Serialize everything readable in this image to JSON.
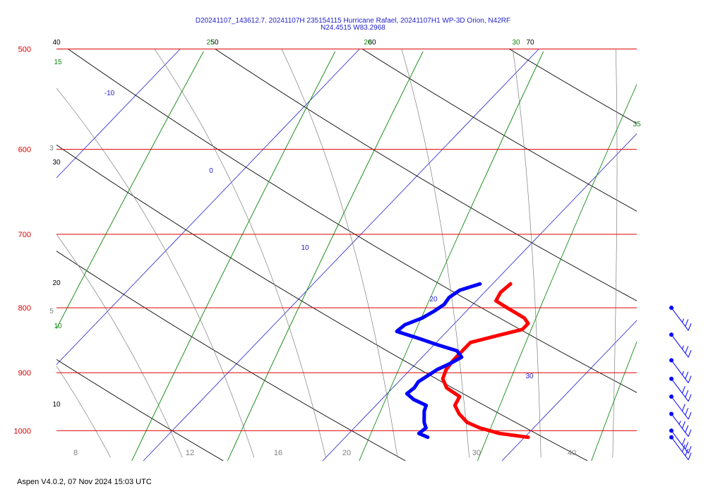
{
  "header": {
    "title_line1": "D20241107_143612.7. 20241107H 235154115 Hurricane Rafael, 20241107H1 WP-3D Orion, N42RF",
    "title_line2": "N24.4515 W83.2968"
  },
  "footer": {
    "text": "Aspen V4.0.2, 07 Nov 2024  15:03 UTC"
  },
  "colors": {
    "isobar": "#dd0000",
    "isotherm": "#2222cc",
    "dry_adiabat": "#000000",
    "moist_adiabat": "#7f7f7f",
    "mixing_ratio": "#118811",
    "temperature": "#ff0000",
    "dewpoint": "#0000ff"
  },
  "chart_data": {
    "type": "line",
    "diagram": "skew-T log-P",
    "pressure_levels": [
      {
        "p": 500,
        "label": "500"
      },
      {
        "p": 600,
        "label": "600"
      },
      {
        "p": 700,
        "label": "700"
      },
      {
        "p": 800,
        "label": "800"
      },
      {
        "p": 900,
        "label": "900"
      },
      {
        "p": 1000,
        "label": "1000"
      }
    ],
    "bottom_temperature_ticks": [
      "8",
      "12",
      "16",
      "20",
      "30",
      "40"
    ],
    "isotherm_labels": [
      "-10",
      "0",
      "10",
      "20",
      "30"
    ],
    "dry_adiabat_labels": [
      "40",
      "30",
      "20",
      "10",
      "50",
      "60",
      "70"
    ],
    "mixing_ratio_labels": [
      "15",
      "10",
      "25",
      "20",
      "30",
      "35"
    ],
    "moist_adiabat_labels": [
      "3",
      "5"
    ],
    "temperature_profile": {
      "p": [
        766,
        778,
        790,
        800,
        808,
        815,
        823,
        832,
        840,
        852,
        865,
        880,
        895,
        910,
        925,
        940,
        955,
        970,
        985,
        995,
        1005,
        1012
      ],
      "t": [
        21.0,
        20.9,
        21.1,
        22.1,
        22.9,
        23.6,
        24.1,
        24.1,
        23.2,
        21.9,
        21.9,
        21.9,
        22.0,
        22.3,
        23.0,
        24.2,
        24.4,
        25.1,
        26.0,
        27.0,
        28.4,
        30.2
      ]
    },
    "dewpoint_profile": {
      "p": [
        766,
        775,
        785,
        795,
        805,
        815,
        825,
        835,
        845,
        855,
        865,
        875,
        885,
        895,
        905,
        915,
        925,
        935,
        945,
        955,
        965,
        975,
        985,
        995,
        1005,
        1012
      ],
      "td": [
        19.3,
        18.5,
        18.3,
        18.4,
        18.2,
        17.9,
        17.3,
        17.2,
        18.7,
        20.1,
        21.6,
        22.2,
        21.9,
        21.5,
        21.3,
        21.1,
        21.2,
        21.1,
        21.8,
        22.8,
        23.0,
        23.3,
        23.6,
        24.0,
        23.9,
        24.6
      ]
    },
    "wind_barbs": [
      {
        "p": 800,
        "speed_kt": 25
      },
      {
        "p": 840,
        "speed_kt": 25
      },
      {
        "p": 880,
        "speed_kt": 25
      },
      {
        "p": 910,
        "speed_kt": 30
      },
      {
        "p": 940,
        "speed_kt": 30
      },
      {
        "p": 970,
        "speed_kt": 35
      },
      {
        "p": 1000,
        "speed_kt": 30
      },
      {
        "p": 1012,
        "speed_kt": 30
      }
    ]
  }
}
